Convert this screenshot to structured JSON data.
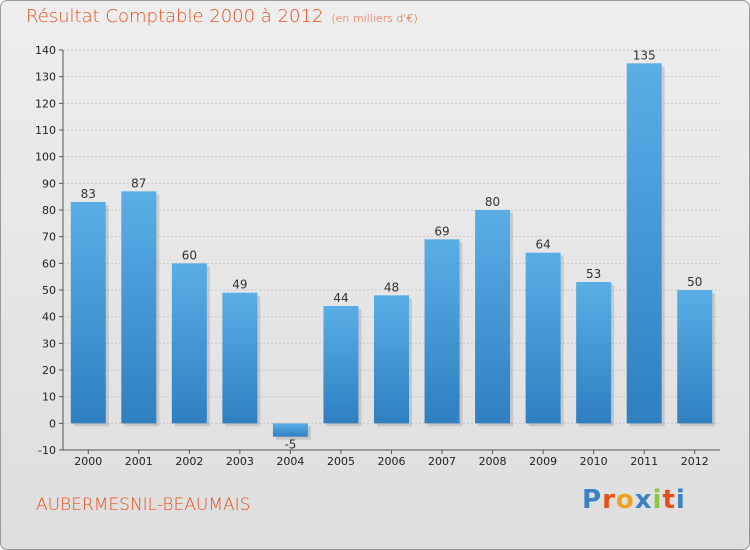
{
  "header": {
    "title": "Résultat Comptable 2000 à 2012",
    "subtitle": "(en milliers d'€)"
  },
  "footer": {
    "commune": "AUBERMESNIL-BEAUMAIS",
    "brand": "Proxiti"
  },
  "colors": {
    "title": "#e8501a",
    "bar_light": "#5aaee6",
    "bar_dark": "#2f7fc1",
    "grid": "#c8c8c8",
    "logo": [
      "#3b82c4",
      "#e8501a",
      "#f0a020",
      "#3b82c4",
      "#8dc63f",
      "#e8501a",
      "#3b82c4"
    ]
  },
  "chart_data": {
    "type": "bar",
    "title": "Résultat Comptable 2000 à 2012",
    "subtitle": "(en milliers d'€)",
    "xlabel": "",
    "ylabel": "",
    "categories": [
      "2000",
      "2001",
      "2002",
      "2003",
      "2004",
      "2005",
      "2006",
      "2007",
      "2008",
      "2009",
      "2010",
      "2011",
      "2012"
    ],
    "values": [
      83,
      87,
      60,
      49,
      -5,
      44,
      48,
      69,
      80,
      64,
      53,
      135,
      50
    ],
    "ylim": [
      -10,
      140
    ],
    "yticks": [
      -10,
      0,
      10,
      20,
      30,
      40,
      50,
      60,
      70,
      80,
      90,
      100,
      110,
      120,
      130,
      140
    ],
    "grid": true
  }
}
